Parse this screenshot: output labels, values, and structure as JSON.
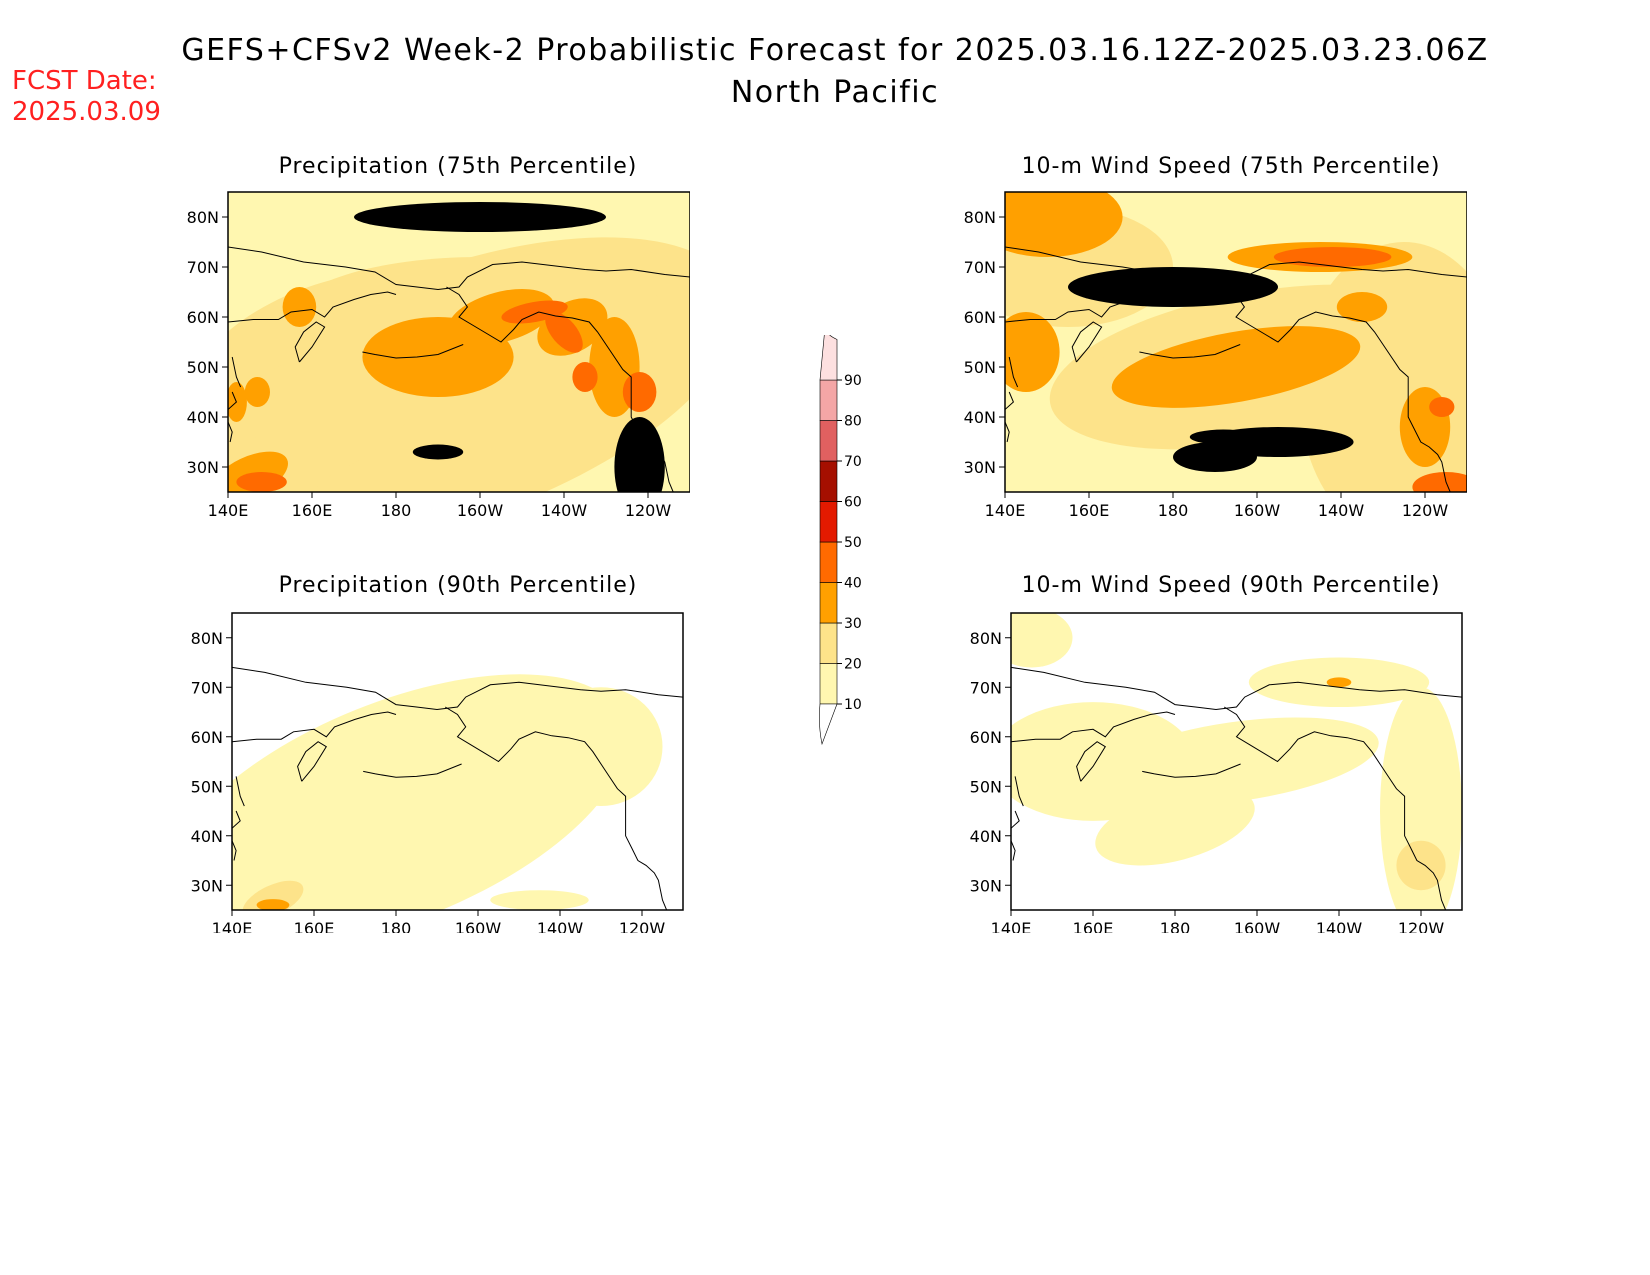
{
  "header": {
    "title": "GEFS+CFSv2 Week-2 Probabilistic Forecast for 2025.03.16.12Z-2025.03.23.06Z",
    "subtitle": "North Pacific",
    "fcst_label": "FCST Date:",
    "fcst_date": "2025.03.09",
    "fcst_color": "#ff2020"
  },
  "panels": [
    {
      "title": "Precipitation (75th Percentile)",
      "variable": "precipitation",
      "percentile": 75
    },
    {
      "title": "10-m Wind Speed (75th Percentile)",
      "variable": "wind",
      "percentile": 75
    },
    {
      "title": "Precipitation (90th Percentile)",
      "variable": "precipitation",
      "percentile": 90
    },
    {
      "title": "10-m Wind Speed (90th Percentile)",
      "variable": "wind",
      "percentile": 90
    }
  ],
  "axes": {
    "lon_labels": [
      "140E",
      "160E",
      "180",
      "160W",
      "140W",
      "120W"
    ],
    "lat_labels": [
      "80N",
      "70N",
      "60N",
      "50N",
      "40N",
      "30N"
    ]
  },
  "colorbar": {
    "levels": [
      "10",
      "20",
      "30",
      "40",
      "50",
      "60",
      "70",
      "80",
      "90"
    ],
    "colors": [
      "#fff7b0",
      "#fde38a",
      "#ffa000",
      "#ff6a00",
      "#e31a00",
      "#a50f00",
      "#e06060",
      "#f4a6a6",
      "#fde0e0"
    ]
  }
}
